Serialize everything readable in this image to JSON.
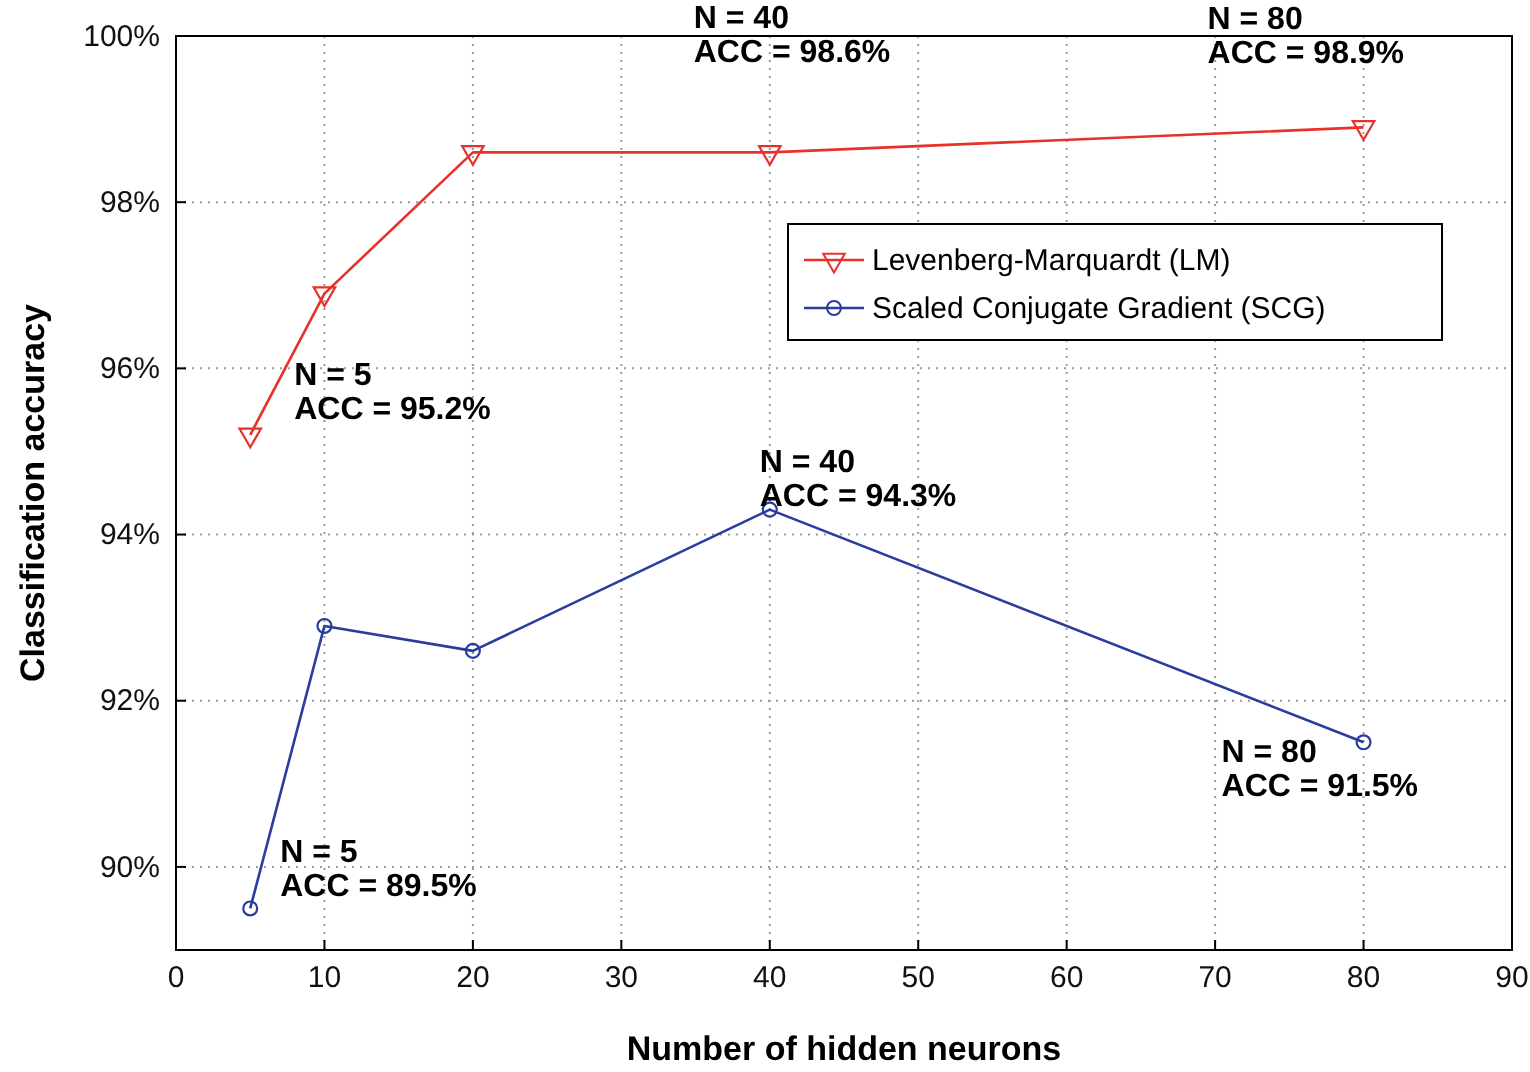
{
  "chart_data": {
    "type": "line",
    "xlabel": "Number of hidden neurons",
    "ylabel": "Classification accuracy",
    "x": [
      5,
      10,
      20,
      40,
      80
    ],
    "series": [
      {
        "name": "Levenberg-Marquardt (LM)",
        "color": "#e8312a",
        "marker": "triangle",
        "values": [
          95.2,
          96.9,
          98.6,
          98.6,
          98.9
        ]
      },
      {
        "name": "Scaled Conjugate Gradient (SCG)",
        "color": "#2a3c9e",
        "marker": "circle",
        "values": [
          89.5,
          92.9,
          92.6,
          94.3,
          91.5
        ]
      }
    ],
    "xlim": [
      0,
      90
    ],
    "xticks": [
      0,
      10,
      20,
      30,
      40,
      50,
      60,
      70,
      80,
      90
    ],
    "ylim": [
      89,
      100
    ],
    "yticks": [
      {
        "value": 90,
        "label": "90%"
      },
      {
        "value": 92,
        "label": "92%"
      },
      {
        "value": 94,
        "label": "94%"
      },
      {
        "value": 96,
        "label": "96%"
      },
      {
        "value": 98,
        "label": "98%"
      },
      {
        "value": 100,
        "label": "100%"
      }
    ],
    "grid": true,
    "legend": "top right",
    "line_style": "solid",
    "annotations": [
      {
        "text": "N = 5\nACC = 95.2%",
        "x": 5,
        "y": 95.2
      },
      {
        "text": "N = 40\nACC = 98.6%",
        "x": 40,
        "y": 98.6
      },
      {
        "text": "N = 80\nACC = 98.9%",
        "x": 80,
        "y": 98.9
      },
      {
        "text": "N = 40\nACC = 94.3%",
        "x": 40,
        "y": 94.3
      },
      {
        "text": "N = 5\nACC = 89.5%",
        "x": 5,
        "y": 89.5
      },
      {
        "text": "N = 80\nACC = 91.5%",
        "x": 80,
        "y": 91.5
      }
    ]
  }
}
